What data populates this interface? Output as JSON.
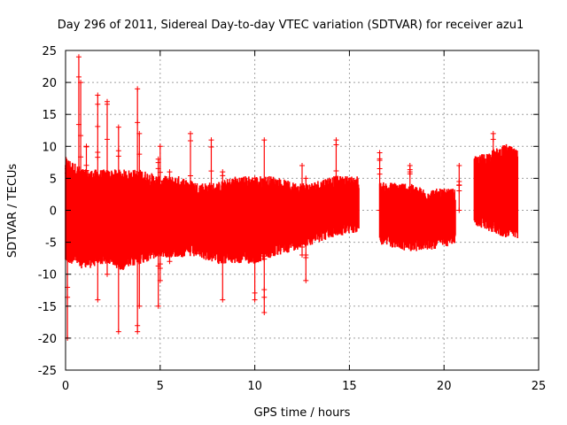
{
  "chart_data": {
    "type": "scatter",
    "title": "Day 296 of 2011, Sidereal Day-to-day VTEC variation (SDTVAR) for receiver azu1",
    "xlabel": "GPS time / hours",
    "ylabel": "SDTVAR / TECUs",
    "xlim": [
      0,
      25
    ],
    "ylim": [
      -25,
      25
    ],
    "xticks": [
      0,
      5,
      10,
      15,
      20,
      25
    ],
    "yticks": [
      -25,
      -20,
      -15,
      -10,
      -5,
      0,
      5,
      10,
      15,
      20,
      25
    ],
    "grid": true,
    "series_color": "#ff0000",
    "marker": "plus",
    "envelope": [
      {
        "x": 0.0,
        "lo": -7,
        "hi": 7
      },
      {
        "x": 0.5,
        "lo": -7,
        "hi": 6
      },
      {
        "x": 1.0,
        "lo": -8,
        "hi": 5
      },
      {
        "x": 2.0,
        "lo": -7,
        "hi": 5
      },
      {
        "x": 3.0,
        "lo": -8,
        "hi": 5
      },
      {
        "x": 4.0,
        "lo": -7,
        "hi": 5
      },
      {
        "x": 5.0,
        "lo": -6,
        "hi": 4
      },
      {
        "x": 6.0,
        "lo": -6,
        "hi": 4
      },
      {
        "x": 7.0,
        "lo": -6,
        "hi": 3
      },
      {
        "x": 8.0,
        "lo": -7,
        "hi": 3
      },
      {
        "x": 9.0,
        "lo": -7,
        "hi": 4
      },
      {
        "x": 10.0,
        "lo": -7,
        "hi": 4
      },
      {
        "x": 11.0,
        "lo": -6,
        "hi": 4
      },
      {
        "x": 12.0,
        "lo": -5,
        "hi": 3
      },
      {
        "x": 13.0,
        "lo": -4,
        "hi": 3
      },
      {
        "x": 14.0,
        "lo": -3,
        "hi": 4
      },
      {
        "x": 15.5,
        "lo": -2,
        "hi": 4
      }
    ],
    "segments": [
      {
        "x_start": 16.6,
        "x_end": 20.6,
        "envelope": [
          {
            "x": 16.6,
            "lo": -4,
            "hi": 3
          },
          {
            "x": 18.0,
            "lo": -5,
            "hi": 3
          },
          {
            "x": 19.0,
            "lo": -5,
            "hi": 2
          },
          {
            "x": 20.6,
            "lo": -4,
            "hi": 2
          }
        ]
      },
      {
        "x_start": 21.6,
        "x_end": 23.9,
        "envelope": [
          {
            "x": 21.6,
            "lo": -1,
            "hi": 7
          },
          {
            "x": 22.5,
            "lo": -2,
            "hi": 8
          },
          {
            "x": 23.3,
            "lo": -3,
            "hi": 9
          },
          {
            "x": 23.9,
            "lo": -3,
            "hi": 8
          }
        ]
      }
    ],
    "spikes": [
      {
        "x": 0.1,
        "lo": -20,
        "hi": 7
      },
      {
        "x": 0.7,
        "lo": -3,
        "hi": 24
      },
      {
        "x": 0.8,
        "lo": -4,
        "hi": 20
      },
      {
        "x": 1.1,
        "lo": -8,
        "hi": 10
      },
      {
        "x": 1.7,
        "lo": -14,
        "hi": 18
      },
      {
        "x": 2.2,
        "lo": -10,
        "hi": 17
      },
      {
        "x": 2.8,
        "lo": -19,
        "hi": 13
      },
      {
        "x": 3.8,
        "lo": -19,
        "hi": 19
      },
      {
        "x": 3.9,
        "lo": -15,
        "hi": 12
      },
      {
        "x": 4.9,
        "lo": -15,
        "hi": 8
      },
      {
        "x": 5.0,
        "lo": -11,
        "hi": 10
      },
      {
        "x": 5.5,
        "lo": -8,
        "hi": 6
      },
      {
        "x": 6.6,
        "lo": 0,
        "hi": 12
      },
      {
        "x": 7.7,
        "lo": 0,
        "hi": 11
      },
      {
        "x": 8.3,
        "lo": -14,
        "hi": 6
      },
      {
        "x": 10.0,
        "lo": -14,
        "hi": 5
      },
      {
        "x": 10.5,
        "lo": -16,
        "hi": 11
      },
      {
        "x": 12.7,
        "lo": -11,
        "hi": 5
      },
      {
        "x": 12.5,
        "lo": -7,
        "hi": 7
      },
      {
        "x": 14.3,
        "lo": -2,
        "hi": 11
      },
      {
        "x": 16.6,
        "lo": 0,
        "hi": 9
      },
      {
        "x": 18.2,
        "lo": 0,
        "hi": 7
      },
      {
        "x": 20.8,
        "lo": 0,
        "hi": 7
      },
      {
        "x": 22.6,
        "lo": 0,
        "hi": 12
      }
    ]
  }
}
